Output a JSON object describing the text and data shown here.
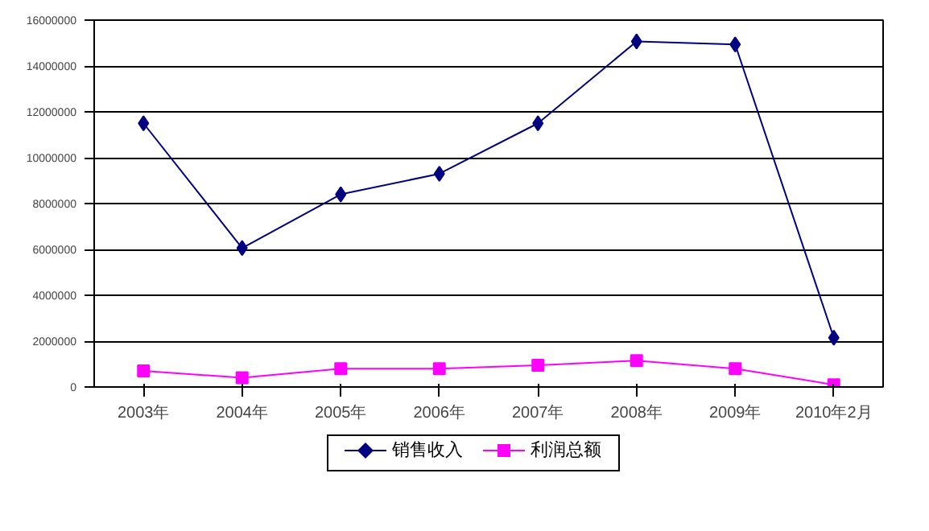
{
  "chart_data": {
    "type": "line",
    "categories": [
      "2003年",
      "2004年",
      "2005年",
      "2006年",
      "2007年",
      "2008年",
      "2009年",
      "2010年2月"
    ],
    "series": [
      {
        "name": "销售收入",
        "color": "#000080",
        "marker": "diamond",
        "values": [
          11500000,
          6060000,
          8400000,
          9300000,
          11500000,
          15070000,
          14940000,
          2150000
        ]
      },
      {
        "name": "利润总额",
        "color": "#ff00ff",
        "marker": "square",
        "values": [
          700000,
          400000,
          800000,
          800000,
          950000,
          1150000,
          800000,
          100000
        ]
      }
    ],
    "ylim": [
      0,
      16000000
    ],
    "yticks": [
      0,
      2000000,
      4000000,
      6000000,
      8000000,
      10000000,
      12000000,
      14000000,
      16000000
    ],
    "grid": "y",
    "legend": "bottom",
    "line_style": "solid"
  }
}
